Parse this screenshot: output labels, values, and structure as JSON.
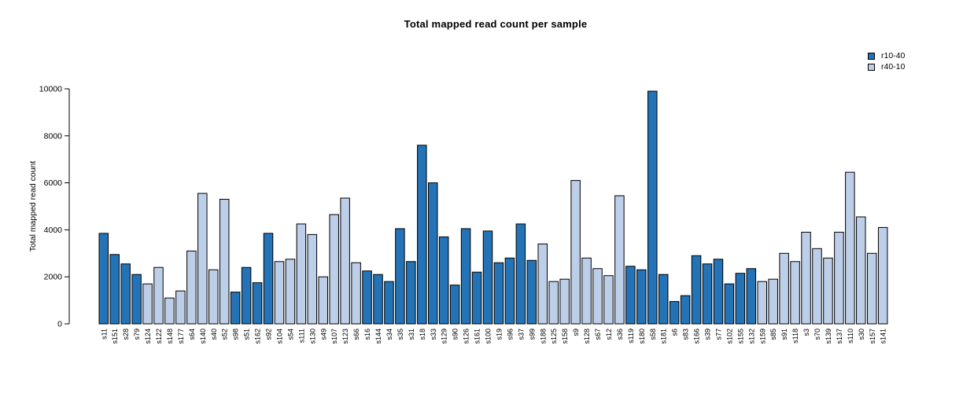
{
  "chart_data": {
    "type": "bar",
    "title": "Total mapped read count per sample",
    "xlabel": "",
    "ylabel": "Total mapped read count",
    "ylim": [
      0,
      10000
    ],
    "yticks": [
      0,
      2000,
      4000,
      6000,
      8000,
      10000
    ],
    "grid": false,
    "x_label_rotation": -90,
    "bar_border_color": "#000000",
    "legend": {
      "position": "top-right",
      "entries": [
        {
          "name": "r10-40",
          "color": "#2373b6"
        },
        {
          "name": "r40-10",
          "color": "#bccee8"
        }
      ]
    },
    "samples": [
      {
        "label": "s11",
        "group": "r10-40",
        "value": 3850
      },
      {
        "label": "s151",
        "group": "r10-40",
        "value": 2950
      },
      {
        "label": "s28",
        "group": "r10-40",
        "value": 2550
      },
      {
        "label": "s79",
        "group": "r10-40",
        "value": 2100
      },
      {
        "label": "s124",
        "group": "r40-10",
        "value": 1700
      },
      {
        "label": "s122",
        "group": "r40-10",
        "value": 2400
      },
      {
        "label": "s148",
        "group": "r40-10",
        "value": 1100
      },
      {
        "label": "s177",
        "group": "r40-10",
        "value": 1400
      },
      {
        "label": "s64",
        "group": "r40-10",
        "value": 3100
      },
      {
        "label": "s140",
        "group": "r40-10",
        "value": 5550
      },
      {
        "label": "s40",
        "group": "r40-10",
        "value": 2300
      },
      {
        "label": "s52",
        "group": "r40-10",
        "value": 5300
      },
      {
        "label": "s98",
        "group": "r10-40",
        "value": 1350
      },
      {
        "label": "s51",
        "group": "r10-40",
        "value": 2400
      },
      {
        "label": "s162",
        "group": "r10-40",
        "value": 1750
      },
      {
        "label": "s92",
        "group": "r10-40",
        "value": 3850
      },
      {
        "label": "s104",
        "group": "r40-10",
        "value": 2650
      },
      {
        "label": "s54",
        "group": "r40-10",
        "value": 2750
      },
      {
        "label": "s111",
        "group": "r40-10",
        "value": 4250
      },
      {
        "label": "s130",
        "group": "r40-10",
        "value": 3800
      },
      {
        "label": "s49",
        "group": "r40-10",
        "value": 2000
      },
      {
        "label": "s107",
        "group": "r40-10",
        "value": 4650
      },
      {
        "label": "s123",
        "group": "r40-10",
        "value": 5350
      },
      {
        "label": "s66",
        "group": "r40-10",
        "value": 2600
      },
      {
        "label": "s16",
        "group": "r10-40",
        "value": 2250
      },
      {
        "label": "s144",
        "group": "r10-40",
        "value": 2100
      },
      {
        "label": "s34",
        "group": "r10-40",
        "value": 1800
      },
      {
        "label": "s35",
        "group": "r10-40",
        "value": 4050
      },
      {
        "label": "s31",
        "group": "r10-40",
        "value": 2650
      },
      {
        "label": "s18",
        "group": "r10-40",
        "value": 7600
      },
      {
        "label": "s33",
        "group": "r10-40",
        "value": 6000
      },
      {
        "label": "s129",
        "group": "r10-40",
        "value": 3700
      },
      {
        "label": "s90",
        "group": "r10-40",
        "value": 1650
      },
      {
        "label": "s126",
        "group": "r10-40",
        "value": 4050
      },
      {
        "label": "s161",
        "group": "r10-40",
        "value": 2200
      },
      {
        "label": "s100",
        "group": "r10-40",
        "value": 3950
      },
      {
        "label": "s19",
        "group": "r10-40",
        "value": 2600
      },
      {
        "label": "s96",
        "group": "r10-40",
        "value": 2800
      },
      {
        "label": "s37",
        "group": "r10-40",
        "value": 4250
      },
      {
        "label": "s99",
        "group": "r10-40",
        "value": 2700
      },
      {
        "label": "s188",
        "group": "r40-10",
        "value": 3400
      },
      {
        "label": "s125",
        "group": "r40-10",
        "value": 1800
      },
      {
        "label": "s158",
        "group": "r40-10",
        "value": 1900
      },
      {
        "label": "s9",
        "group": "r40-10",
        "value": 6100
      },
      {
        "label": "s128",
        "group": "r40-10",
        "value": 2800
      },
      {
        "label": "s67",
        "group": "r40-10",
        "value": 2350
      },
      {
        "label": "s12",
        "group": "r40-10",
        "value": 2050
      },
      {
        "label": "s36",
        "group": "r40-10",
        "value": 5450
      },
      {
        "label": "s119",
        "group": "r10-40",
        "value": 2450
      },
      {
        "label": "s180",
        "group": "r10-40",
        "value": 2300
      },
      {
        "label": "s58",
        "group": "r10-40",
        "value": 9900
      },
      {
        "label": "s181",
        "group": "r10-40",
        "value": 2100
      },
      {
        "label": "s6",
        "group": "r10-40",
        "value": 950
      },
      {
        "label": "s83",
        "group": "r10-40",
        "value": 1200
      },
      {
        "label": "s166",
        "group": "r10-40",
        "value": 2900
      },
      {
        "label": "s39",
        "group": "r10-40",
        "value": 2550
      },
      {
        "label": "s77",
        "group": "r10-40",
        "value": 2750
      },
      {
        "label": "s102",
        "group": "r10-40",
        "value": 1700
      },
      {
        "label": "s155",
        "group": "r10-40",
        "value": 2150
      },
      {
        "label": "s132",
        "group": "r10-40",
        "value": 2350
      },
      {
        "label": "s159",
        "group": "r40-10",
        "value": 1800
      },
      {
        "label": "s85",
        "group": "r40-10",
        "value": 1900
      },
      {
        "label": "s91",
        "group": "r40-10",
        "value": 3000
      },
      {
        "label": "s118",
        "group": "r40-10",
        "value": 2650
      },
      {
        "label": "s3",
        "group": "r40-10",
        "value": 3900
      },
      {
        "label": "s70",
        "group": "r40-10",
        "value": 3200
      },
      {
        "label": "s139",
        "group": "r40-10",
        "value": 2800
      },
      {
        "label": "s137",
        "group": "r40-10",
        "value": 3900
      },
      {
        "label": "s110",
        "group": "r40-10",
        "value": 6450
      },
      {
        "label": "s30",
        "group": "r40-10",
        "value": 4550
      },
      {
        "label": "s157",
        "group": "r40-10",
        "value": 3000
      },
      {
        "label": "s141",
        "group": "r40-10",
        "value": 4100
      }
    ]
  }
}
